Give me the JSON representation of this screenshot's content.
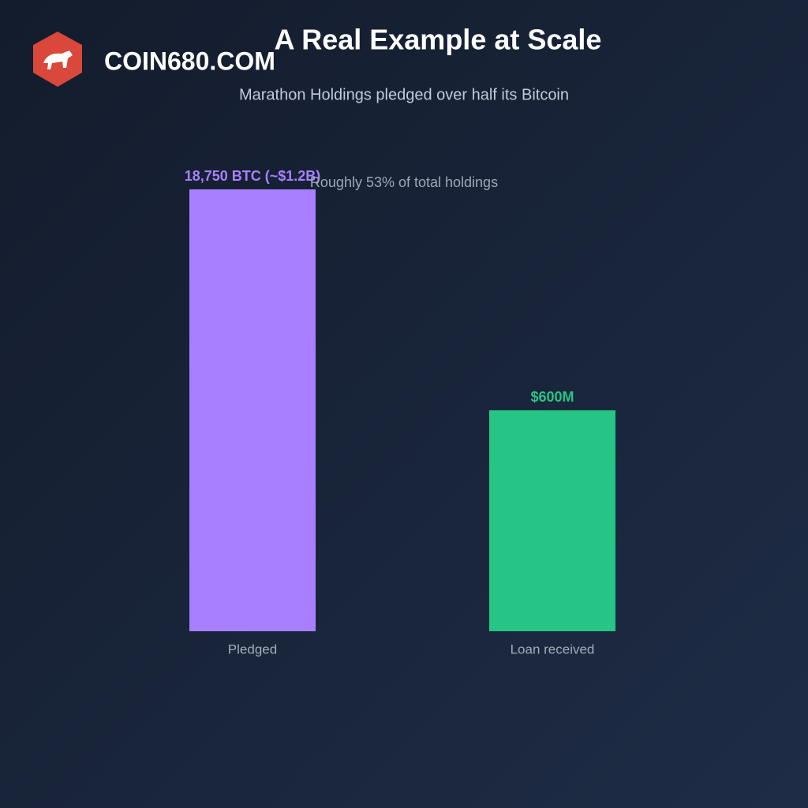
{
  "chart_data": {
    "type": "bar",
    "title": "A Real Example at Scale",
    "subtitle": "Marathon Holdings pledged over half its Bitcoin",
    "annotation": "Roughly 53% of total holdings",
    "watermark": "COIN680.COM",
    "categories": [
      "Pledged",
      "Loan received"
    ],
    "values": [
      1200,
      600
    ],
    "value_labels": [
      "18,750 BTC (~$1.2B)",
      "$600M"
    ],
    "colors": [
      "#a880ff",
      "#26c485"
    ],
    "ylim": [
      0,
      1200
    ]
  }
}
